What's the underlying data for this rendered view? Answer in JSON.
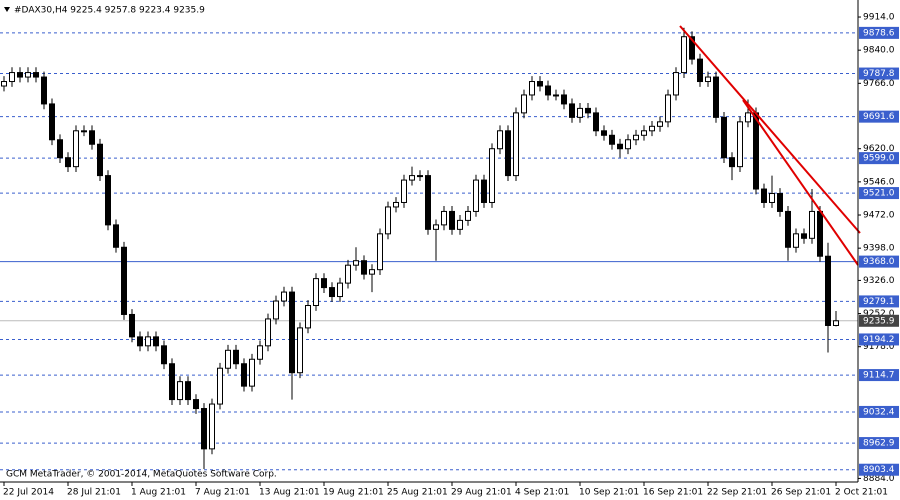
{
  "chart_data": {
    "type": "candlestick",
    "title": "#DAX30,H4  9225.4 9257.8 9223.4 9235.9",
    "footer": "GCM MetaTrader, © 2001-2014, MetaQuotes Software Corp.",
    "categories": [
      "22 Jul 2014",
      null,
      null,
      null,
      null,
      null,
      null,
      null,
      "28 Jul 21:01",
      null,
      null,
      null,
      null,
      null,
      null,
      null,
      "1 Aug 21:01",
      null,
      null,
      null,
      null,
      null,
      null,
      null,
      "7 Aug 21:01",
      null,
      null,
      null,
      null,
      null,
      null,
      null,
      "13 Aug 21:01",
      null,
      null,
      null,
      null,
      null,
      null,
      null,
      "19 Aug 21:01",
      null,
      null,
      null,
      null,
      null,
      null,
      null,
      "25 Aug 21:01",
      null,
      null,
      null,
      null,
      null,
      null,
      null,
      "29 Aug 21:01",
      null,
      null,
      null,
      null,
      null,
      null,
      null,
      "4 Sep 21:01",
      null,
      null,
      null,
      null,
      null,
      null,
      null,
      "10 Sep 21:01",
      null,
      null,
      null,
      null,
      null,
      null,
      null,
      "16 Sep 21:01",
      null,
      null,
      null,
      null,
      null,
      null,
      null,
      "22 Sep 21:01",
      null,
      null,
      null,
      null,
      null,
      null,
      null,
      "26 Sep 21:01",
      null,
      null,
      null,
      null,
      null,
      null,
      null,
      "2 Oct 21:01"
    ],
    "open": [
      9760,
      9770,
      9790,
      9780,
      9790,
      9780,
      9720,
      9640,
      9600,
      9580,
      9660,
      9660,
      9630,
      9560,
      9450,
      9400,
      9250,
      9200,
      9180,
      9200,
      9180,
      9140,
      9060,
      9100,
      9060,
      9040,
      8950,
      9050,
      9130,
      9170,
      9140,
      9090,
      9150,
      9180,
      9240,
      9280,
      9300,
      9120,
      9220,
      9270,
      9330,
      9310,
      9290,
      9320,
      9360,
      9370,
      9340,
      9350,
      9430,
      9490,
      9500,
      9550,
      9560,
      9560,
      9440,
      9450,
      9480,
      9440,
      9460,
      9480,
      9550,
      9500,
      9620,
      9660,
      9560,
      9700,
      9740,
      9770,
      9760,
      9740,
      9740,
      9720,
      9690,
      9710,
      9700,
      9660,
      9650,
      9630,
      9620,
      9640,
      9650,
      9660,
      9670,
      9680,
      9740,
      9790,
      9870,
      9820,
      9770,
      9780,
      9690,
      9600,
      9580,
      9680,
      9700,
      9530,
      9500,
      9520,
      9480,
      9400,
      9430,
      9420,
      9480,
      9380,
      9225.4
    ],
    "high": [
      9782,
      9802,
      9802,
      9802,
      9802,
      9792,
      9732,
      9652,
      9612,
      9672,
      9672,
      9672,
      9642,
      9572,
      9462,
      9412,
      9262,
      9212,
      9212,
      9212,
      9192,
      9152,
      9112,
      9112,
      9072,
      9052,
      9062,
      9142,
      9182,
      9182,
      9152,
      9162,
      9192,
      9252,
      9292,
      9312,
      9312,
      9232,
      9282,
      9342,
      9342,
      9322,
      9332,
      9372,
      9400,
      9382,
      9362,
      9442,
      9502,
      9512,
      9562,
      9580,
      9572,
      9572,
      9462,
      9492,
      9492,
      9472,
      9492,
      9562,
      9562,
      9632,
      9672,
      9672,
      9712,
      9752,
      9782,
      9782,
      9772,
      9752,
      9752,
      9732,
      9722,
      9722,
      9712,
      9672,
      9662,
      9642,
      9652,
      9662,
      9672,
      9682,
      9692,
      9752,
      9802,
      9890,
      9882,
      9832,
      9792,
      9792,
      9702,
      9612,
      9692,
      9730,
      9712,
      9542,
      9560,
      9532,
      9492,
      9442,
      9442,
      9530,
      9492,
      9410,
      9257.8
    ],
    "low": [
      9748,
      9758,
      9768,
      9768,
      9768,
      9708,
      9628,
      9588,
      9568,
      9568,
      9648,
      9618,
      9548,
      9438,
      9388,
      9238,
      9188,
      9168,
      9168,
      9168,
      9128,
      9048,
      9048,
      9048,
      9028,
      8905,
      8938,
      9038,
      9118,
      9128,
      9078,
      9078,
      9138,
      9168,
      9228,
      9268,
      9060,
      9108,
      9208,
      9258,
      9298,
      9278,
      9278,
      9308,
      9348,
      9328,
      9300,
      9338,
      9418,
      9478,
      9488,
      9538,
      9548,
      9428,
      9370,
      9438,
      9428,
      9428,
      9448,
      9468,
      9488,
      9488,
      9608,
      9548,
      9548,
      9688,
      9728,
      9748,
      9728,
      9728,
      9708,
      9678,
      9678,
      9688,
      9648,
      9638,
      9618,
      9600,
      9608,
      9628,
      9638,
      9648,
      9658,
      9668,
      9728,
      9778,
      9808,
      9758,
      9758,
      9678,
      9588,
      9550,
      9568,
      9668,
      9518,
      9488,
      9488,
      9468,
      9370,
      9388,
      9408,
      9408,
      9368,
      9165,
      9223.4
    ],
    "close": [
      9770,
      9790,
      9780,
      9790,
      9780,
      9720,
      9640,
      9600,
      9580,
      9660,
      9660,
      9630,
      9560,
      9450,
      9400,
      9250,
      9200,
      9180,
      9200,
      9180,
      9140,
      9060,
      9100,
      9060,
      9040,
      8950,
      9050,
      9130,
      9170,
      9140,
      9090,
      9150,
      9180,
      9240,
      9280,
      9300,
      9120,
      9220,
      9270,
      9330,
      9310,
      9290,
      9320,
      9360,
      9370,
      9340,
      9350,
      9430,
      9490,
      9500,
      9550,
      9560,
      9560,
      9440,
      9450,
      9480,
      9440,
      9460,
      9480,
      9550,
      9500,
      9620,
      9660,
      9560,
      9700,
      9740,
      9770,
      9760,
      9740,
      9740,
      9720,
      9690,
      9710,
      9700,
      9660,
      9650,
      9630,
      9620,
      9640,
      9650,
      9660,
      9670,
      9680,
      9740,
      9790,
      9870,
      9820,
      9770,
      9780,
      9690,
      9600,
      9580,
      9680,
      9700,
      9530,
      9500,
      9520,
      9480,
      9400,
      9430,
      9420,
      9480,
      9380,
      9225.4,
      9235.9
    ],
    "bull_color": "#ffffff",
    "bear_color": "#000000",
    "ylim": [
      8876,
      9952
    ],
    "yticks": [
      {
        "value": 9914,
        "label": "9914.0"
      },
      {
        "value": 9840,
        "label": "9840.0"
      },
      {
        "value": 9766,
        "label": "9766.0"
      },
      {
        "value": 9620,
        "label": "9620.0"
      },
      {
        "value": 9546,
        "label": "9546.0"
      },
      {
        "value": 9472,
        "label": "9472.0"
      },
      {
        "value": 9398,
        "label": "9398.0"
      },
      {
        "value": 9326,
        "label": "9326.0"
      },
      {
        "value": 9252,
        "label": "9252.0"
      },
      {
        "value": 9178,
        "label": "9178.0"
      },
      {
        "value": 8884,
        "label": "8884.0"
      }
    ],
    "levels": [
      {
        "value": 9878.6,
        "label": "9878.6",
        "style": "dash",
        "color": "#3a5fcd"
      },
      {
        "value": 9787.8,
        "label": "9787.8",
        "style": "dash",
        "color": "#3a5fcd"
      },
      {
        "value": 9691.6,
        "label": "9691.6",
        "style": "dash",
        "color": "#3a5fcd"
      },
      {
        "value": 9599,
        "label": "9599.0",
        "style": "dash",
        "color": "#3a5fcd"
      },
      {
        "value": 9521,
        "label": "9521.0",
        "style": "dash",
        "color": "#3a5fcd"
      },
      {
        "value": 9368,
        "label": "9368.0",
        "style": "solid",
        "color": "#3a5fcd"
      },
      {
        "value": 9279.1,
        "label": "9279.1",
        "style": "dash",
        "color": "#3a5fcd"
      },
      {
        "value": 9235.9,
        "label": "9235.9",
        "style": "solid",
        "color": "#444444"
      },
      {
        "value": 9194.2,
        "label": "9194.2",
        "style": "dash",
        "color": "#3a5fcd"
      },
      {
        "value": 9114.7,
        "label": "9114.7",
        "style": "dash",
        "color": "#3a5fcd"
      },
      {
        "value": 9032.4,
        "label": "9032.4",
        "style": "dash",
        "color": "#3a5fcd"
      },
      {
        "value": 8962.9,
        "label": "8962.9",
        "style": "dash",
        "color": "#3a5fcd"
      },
      {
        "value": 8903.4,
        "label": "8903.4",
        "style": "dash",
        "color": "#3a5fcd"
      }
    ]
  }
}
